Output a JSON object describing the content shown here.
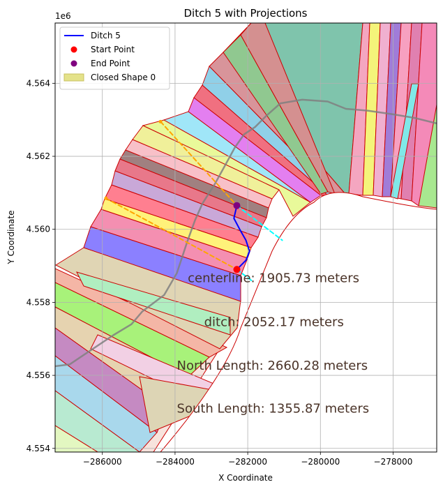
{
  "chart_data": {
    "type": "line",
    "title": "Ditch 5 with Projections",
    "xlabel": "X Coordinate",
    "ylabel": "Y Coordinate",
    "xlim": [
      -287300,
      -276800
    ],
    "ylim": [
      4553900,
      4565650
    ],
    "y_offset_label": "1e6",
    "grid": true,
    "legend_position": "upper-left",
    "x_ticks": [
      {
        "value": -286000,
        "label": "−286000"
      },
      {
        "value": -284000,
        "label": "−284000"
      },
      {
        "value": -282000,
        "label": "−282000"
      },
      {
        "value": -280000,
        "label": "−280000"
      },
      {
        "value": -278000,
        "label": "−278000"
      }
    ],
    "y_ticks": [
      {
        "value": 4554000,
        "label": "4.554"
      },
      {
        "value": 4556000,
        "label": "4.556"
      },
      {
        "value": 4558000,
        "label": "4.558"
      },
      {
        "value": 4560000,
        "label": "4.560"
      },
      {
        "value": 4562000,
        "label": "4.562"
      },
      {
        "value": 4564000,
        "label": "4.564"
      }
    ],
    "legend": [
      {
        "label": "Ditch 5",
        "kind": "line",
        "color": "#0000ff"
      },
      {
        "label": "Start Point",
        "kind": "marker",
        "color": "#ff0000"
      },
      {
        "label": "End Point",
        "kind": "marker",
        "color": "#800080"
      },
      {
        "label": "Closed Shape 0",
        "kind": "patch",
        "color": "#e4e28a"
      }
    ],
    "series": [
      {
        "name": "Ditch 5",
        "color": "#0000ff",
        "points": [
          [
            -282300,
            4560650
          ],
          [
            -282380,
            4560300
          ],
          [
            -282220,
            4560000
          ],
          [
            -282050,
            4559700
          ],
          [
            -281950,
            4559400
          ],
          [
            -282050,
            4559150
          ],
          [
            -282300,
            4558900
          ]
        ]
      },
      {
        "color": "#808080",
        "points": [
          [
            -287300,
            4556250
          ],
          [
            -286900,
            4556300
          ],
          [
            -286300,
            4556700
          ],
          [
            -285700,
            4557100
          ],
          [
            -285200,
            4557400
          ],
          [
            -284900,
            4557750
          ],
          [
            -284300,
            4558200
          ],
          [
            -283950,
            4558800
          ],
          [
            -283800,
            4559250
          ],
          [
            -283650,
            4559700
          ],
          [
            -283450,
            4560250
          ],
          [
            -283250,
            4560700
          ],
          [
            -282900,
            4561250
          ],
          [
            -282650,
            4561700
          ],
          [
            -282350,
            4562250
          ],
          [
            -282100,
            4562600
          ],
          [
            -281800,
            4562800
          ],
          [
            -281500,
            4563100
          ],
          [
            -281100,
            4563450
          ],
          [
            -280500,
            4563550
          ],
          [
            -279800,
            4563500
          ],
          [
            -279300,
            4563300
          ],
          [
            -278700,
            4563250
          ],
          [
            -278000,
            4563150
          ],
          [
            -277400,
            4563050
          ],
          [
            -276800,
            4562900
          ]
        ]
      },
      {
        "color": "#ffa500",
        "dashed": true,
        "points": [
          [
            -284400,
            4562950
          ],
          [
            -282300,
            4560650
          ]
        ]
      },
      {
        "color": "#ffa500",
        "dashed": true,
        "points": [
          [
            -285900,
            4560850
          ],
          [
            -282300,
            4558900
          ]
        ]
      },
      {
        "color": "#00ffff",
        "dashed": true,
        "points": [
          [
            -282300,
            4560650
          ],
          [
            -281050,
            4559700
          ]
        ]
      },
      {
        "color": "#00ffff",
        "dashed": true,
        "points": [
          [
            -282300,
            4558900
          ],
          [
            -281900,
            4558600
          ]
        ]
      }
    ],
    "start_point": {
      "x": -282300,
      "y": 4558900
    },
    "end_point": {
      "x": -282300,
      "y": 4560650
    },
    "annotations": [
      {
        "text": "centerline: 1905.73 meters",
        "x": -283650,
        "y": 4558550
      },
      {
        "text": "ditch: 2052.17 meters",
        "x": -283200,
        "y": 4557350
      },
      {
        "text": "North Length: 2660.28 meters",
        "x": -283950,
        "y": 4556150
      },
      {
        "text": "South Length: 1355.87 meters",
        "x": -283950,
        "y": 4554980
      }
    ]
  }
}
